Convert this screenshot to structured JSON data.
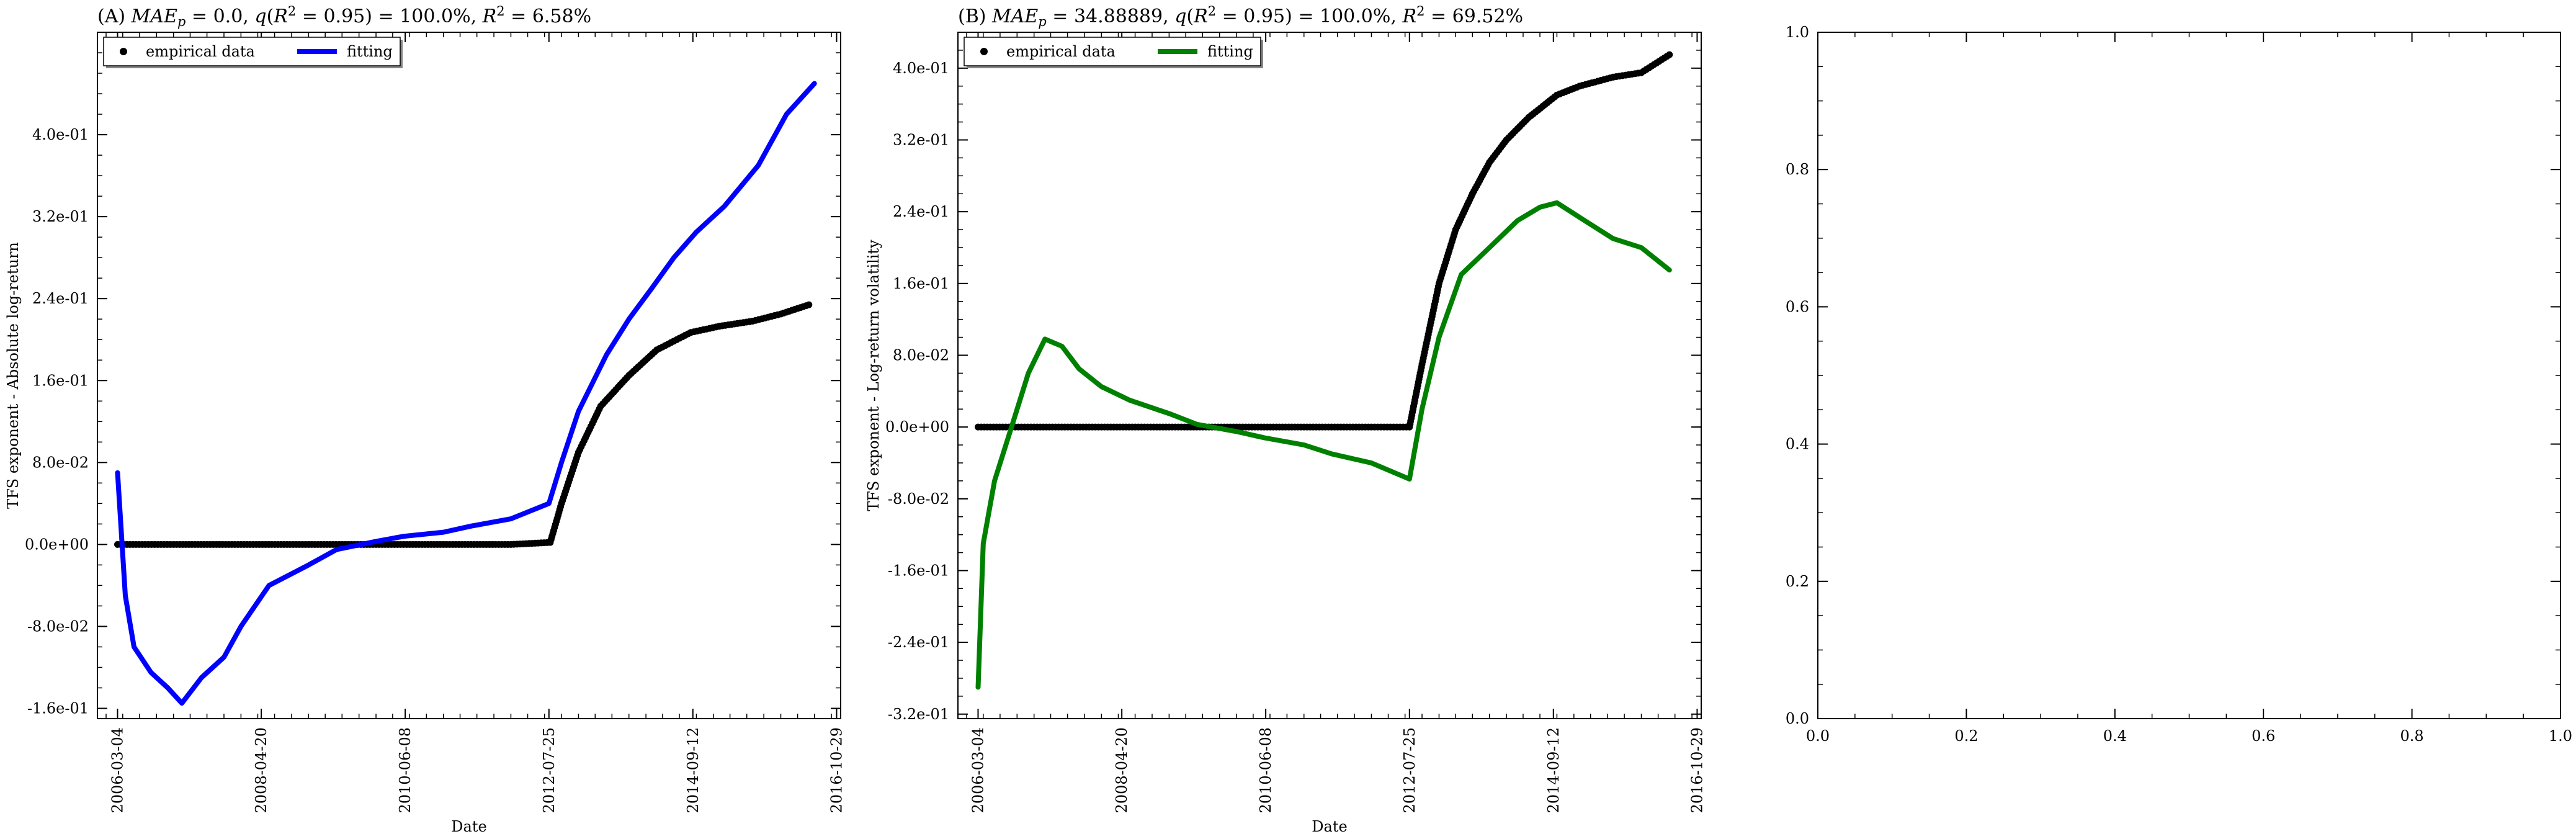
{
  "chart_data": [
    {
      "type": "line",
      "panel": "A",
      "title": "(A) MAE_p = 0.0, q(R² = 0.95) = 100.0%, R² = 6.58%",
      "xlabel": "Date",
      "ylabel": "TFS exponent - Absolute log-return",
      "xlim": [
        "2005-11-15",
        "2016-11-20"
      ],
      "ylim": [
        -0.17,
        0.5
      ],
      "x_ticks": [
        "2006-03-04",
        "2008-04-20",
        "2010-06-08",
        "2012-07-25",
        "2014-09-12",
        "2016-10-29"
      ],
      "y_ticks": [
        "-1.6e-01",
        "-8.0e-02",
        "0.0e+00",
        "8.0e-02",
        "1.6e-01",
        "2.4e-01",
        "3.2e-01",
        "4.0e-01"
      ],
      "y_tick_values": [
        -0.16,
        -0.08,
        0.0,
        0.08,
        0.16,
        0.24,
        0.32,
        0.4
      ],
      "legend": {
        "position": "top-left",
        "entries": [
          "empirical data",
          "fitting"
        ]
      },
      "series": [
        {
          "name": "empirical data",
          "style": "points",
          "color": "#000000",
          "x": [
            "2006-03-04",
            "2006-08-01",
            "2007-01-01",
            "2008-01-01",
            "2009-01-01",
            "2010-01-01",
            "2011-01-01",
            "2012-01-01",
            "2012-08-01",
            "2012-10-01",
            "2013-01-01",
            "2013-05-01",
            "2013-10-01",
            "2014-03-01",
            "2014-09-01",
            "2015-02-01",
            "2015-08-01",
            "2016-01-01",
            "2016-06-01"
          ],
          "y": [
            0.0,
            0.0,
            0.0,
            0.0,
            0.0,
            0.0,
            0.0,
            0.0,
            0.002,
            0.04,
            0.09,
            0.135,
            0.165,
            0.19,
            0.207,
            0.213,
            0.218,
            0.225,
            0.234
          ]
        },
        {
          "name": "fitting",
          "style": "line",
          "color": "#0000ff",
          "x": [
            "2006-03-04",
            "2006-04-15",
            "2006-06-01",
            "2006-09-01",
            "2006-12-01",
            "2007-02-15",
            "2007-06-01",
            "2007-10-01",
            "2008-01-01",
            "2008-06-01",
            "2009-01-01",
            "2009-06-01",
            "2010-01-01",
            "2010-06-01",
            "2011-01-01",
            "2011-06-01",
            "2012-01-01",
            "2012-07-25",
            "2012-10-01",
            "2013-01-01",
            "2013-06-01",
            "2013-10-01",
            "2014-02-01",
            "2014-06-01",
            "2014-10-01",
            "2015-03-01",
            "2015-09-01",
            "2016-02-01",
            "2016-07-01"
          ],
          "y": [
            0.07,
            -0.05,
            -0.1,
            -0.125,
            -0.14,
            -0.155,
            -0.13,
            -0.11,
            -0.08,
            -0.04,
            -0.02,
            -0.005,
            0.003,
            0.008,
            0.012,
            0.018,
            0.025,
            0.04,
            0.08,
            0.13,
            0.185,
            0.22,
            0.25,
            0.28,
            0.305,
            0.33,
            0.37,
            0.42,
            0.45
          ]
        }
      ]
    },
    {
      "type": "line",
      "panel": "B",
      "title": "(B) MAE_p = 34.88889, q(R² = 0.95) = 100.0%, R² = 69.52%",
      "xlabel": "Date",
      "ylabel": "TFS exponent - Log-return volatility",
      "xlim": [
        "2005-11-15",
        "2016-11-20"
      ],
      "ylim": [
        -0.325,
        0.44
      ],
      "x_ticks": [
        "2006-03-04",
        "2008-04-20",
        "2010-06-08",
        "2012-07-25",
        "2014-09-12",
        "2016-10-29"
      ],
      "y_ticks": [
        "-3.2e-01",
        "-2.4e-01",
        "-1.6e-01",
        "-8.0e-02",
        "0.0e+00",
        "8.0e-02",
        "1.6e-01",
        "2.4e-01",
        "3.2e-01",
        "4.0e-01"
      ],
      "y_tick_values": [
        -0.32,
        -0.24,
        -0.16,
        -0.08,
        0.0,
        0.08,
        0.16,
        0.24,
        0.32,
        0.4
      ],
      "legend": {
        "position": "top-left",
        "entries": [
          "empirical data",
          "fitting"
        ]
      },
      "series": [
        {
          "name": "empirical data",
          "style": "points",
          "color": "#000000",
          "x": [
            "2006-03-04",
            "2006-08-01",
            "2007-01-01",
            "2008-01-01",
            "2009-01-01",
            "2010-01-01",
            "2011-01-01",
            "2012-01-01",
            "2012-07-25",
            "2012-10-01",
            "2013-01-01",
            "2013-04-01",
            "2013-07-01",
            "2013-10-01",
            "2014-01-01",
            "2014-05-01",
            "2014-10-01",
            "2015-02-01",
            "2015-08-01",
            "2016-01-01",
            "2016-06-01"
          ],
          "y": [
            0.0,
            0.0,
            0.0,
            0.0,
            0.0,
            0.0,
            0.0,
            0.0,
            0.0,
            0.07,
            0.16,
            0.22,
            0.26,
            0.295,
            0.32,
            0.345,
            0.37,
            0.38,
            0.39,
            0.395,
            0.415
          ]
        },
        {
          "name": "fitting",
          "style": "line",
          "color": "#008000",
          "x": [
            "2006-03-04",
            "2006-04-01",
            "2006-06-01",
            "2006-09-01",
            "2006-12-01",
            "2007-03-01",
            "2007-06-01",
            "2007-09-01",
            "2008-01-01",
            "2008-06-01",
            "2009-01-01",
            "2009-06-01",
            "2010-01-01",
            "2010-06-01",
            "2011-01-01",
            "2011-06-01",
            "2012-01-01",
            "2012-07-25",
            "2012-10-01",
            "2013-01-01",
            "2013-05-01",
            "2013-10-01",
            "2014-03-01",
            "2014-07-01",
            "2014-10-01",
            "2015-03-01",
            "2015-08-01",
            "2016-01-01",
            "2016-06-01"
          ],
          "y": [
            -0.29,
            -0.13,
            -0.06,
            0.0,
            0.06,
            0.098,
            0.09,
            0.065,
            0.045,
            0.03,
            0.015,
            0.003,
            -0.005,
            -0.012,
            -0.02,
            -0.03,
            -0.04,
            -0.058,
            0.02,
            0.1,
            0.17,
            0.2,
            0.23,
            0.245,
            0.25,
            0.23,
            0.21,
            0.2,
            0.175
          ]
        }
      ]
    },
    {
      "type": "line",
      "panel": "C",
      "title": "",
      "xlabel": "",
      "ylabel": "",
      "xlim": [
        0.0,
        1.0
      ],
      "ylim": [
        0.0,
        1.0
      ],
      "x_ticks": [
        "0.0",
        "0.2",
        "0.4",
        "0.6",
        "0.8",
        "1.0"
      ],
      "y_ticks": [
        "0.0",
        "0.2",
        "0.4",
        "0.6",
        "0.8",
        "1.0"
      ],
      "series": []
    }
  ],
  "colors": {
    "empirical": "#000000",
    "fitting_a": "#0000ff",
    "fitting_b": "#008000",
    "axes": "#000000"
  }
}
